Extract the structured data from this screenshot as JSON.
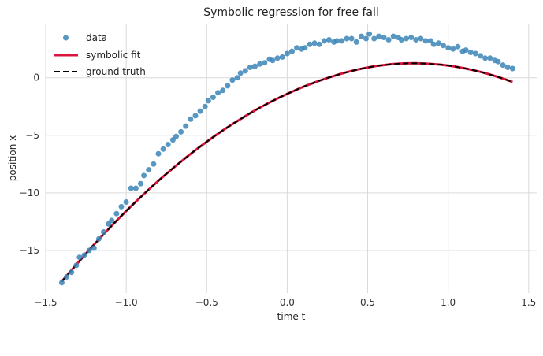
{
  "chart_data": {
    "type": "scatter",
    "title": "Symbolic regression for free fall",
    "xlabel": "time t",
    "ylabel": "position x",
    "xlim": [
      -1.5,
      1.55
    ],
    "ylim": [
      -18.7,
      4.7
    ],
    "xticks": [
      -1.5,
      -1.0,
      -0.5,
      0.0,
      0.5,
      1.0,
      1.5
    ],
    "xtick_labels": [
      "−1.5",
      "−1.0",
      "−0.5",
      "0.0",
      "0.5",
      "1.0",
      "1.5"
    ],
    "yticks": [
      -15,
      -10,
      -5,
      0
    ],
    "ytick_labels": [
      "−15",
      "−10",
      "−5",
      "0"
    ],
    "grid": true,
    "legend_position": "top-left",
    "colors": {
      "data": "#3b85b7",
      "symbolic_fit": "#dc143c",
      "ground_truth": "#000000",
      "grid": "#d9d9d9"
    },
    "series": [
      {
        "name": "data",
        "kind": "scatter",
        "x": [
          -1.4,
          -1.37,
          -1.34,
          -1.31,
          -1.29,
          -1.26,
          -1.23,
          -1.2,
          -1.17,
          -1.14,
          -1.11,
          -1.09,
          -1.06,
          -1.03,
          -1.0,
          -0.97,
          -0.94,
          -0.91,
          -0.89,
          -0.86,
          -0.83,
          -0.8,
          -0.77,
          -0.74,
          -0.71,
          -0.69,
          -0.66,
          -0.63,
          -0.6,
          -0.57,
          -0.54,
          -0.51,
          -0.49,
          -0.46,
          -0.43,
          -0.4,
          -0.37,
          -0.34,
          -0.31,
          -0.29,
          -0.26,
          -0.23,
          -0.2,
          -0.17,
          -0.14,
          -0.11,
          -0.09,
          -0.06,
          -0.03,
          0.0,
          0.03,
          0.06,
          0.09,
          0.11,
          0.14,
          0.17,
          0.2,
          0.23,
          0.26,
          0.29,
          0.31,
          0.34,
          0.37,
          0.4,
          0.43,
          0.46,
          0.49,
          0.51,
          0.54,
          0.57,
          0.6,
          0.63,
          0.66,
          0.69,
          0.71,
          0.74,
          0.77,
          0.8,
          0.83,
          0.86,
          0.89,
          0.91,
          0.94,
          0.97,
          1.0,
          1.03,
          1.06,
          1.09,
          1.11,
          1.14,
          1.17,
          1.2,
          1.23,
          1.26,
          1.29,
          1.31,
          1.34,
          1.37,
          1.4
        ],
        "y": [
          -17.8,
          -17.3,
          -16.9,
          -16.3,
          -15.6,
          -15.4,
          -15.0,
          -14.8,
          -14.0,
          -13.4,
          -12.7,
          -12.4,
          -11.8,
          -11.2,
          -10.8,
          -9.6,
          -9.6,
          -9.2,
          -8.5,
          -8.0,
          -7.5,
          -6.6,
          -6.2,
          -5.8,
          -5.4,
          -5.1,
          -4.7,
          -4.2,
          -3.6,
          -3.3,
          -2.9,
          -2.5,
          -2.0,
          -1.7,
          -1.3,
          -1.1,
          -0.7,
          -0.2,
          0.0,
          0.4,
          0.6,
          0.9,
          1.0,
          1.2,
          1.3,
          1.6,
          1.5,
          1.7,
          1.8,
          2.1,
          2.3,
          2.6,
          2.5,
          2.6,
          2.9,
          3.0,
          2.9,
          3.2,
          3.3,
          3.1,
          3.2,
          3.2,
          3.4,
          3.4,
          3.1,
          3.6,
          3.4,
          3.8,
          3.4,
          3.6,
          3.5,
          3.3,
          3.6,
          3.5,
          3.3,
          3.4,
          3.5,
          3.3,
          3.4,
          3.2,
          3.2,
          2.9,
          3.0,
          2.8,
          2.6,
          2.5,
          2.7,
          2.3,
          2.4,
          2.2,
          2.1,
          1.9,
          1.7,
          1.7,
          1.5,
          1.4,
          1.1,
          0.9,
          0.8
        ]
      },
      {
        "name": "symbolic fit",
        "kind": "line",
        "x": [
          -1.4,
          -1.35,
          -1.3,
          -1.25,
          -1.2,
          -1.15,
          -1.1,
          -1.05,
          -1.0,
          -0.95,
          -0.9,
          -0.85,
          -0.8,
          -0.75,
          -0.7,
          -0.65,
          -0.6,
          -0.55,
          -0.5,
          -0.45,
          -0.4,
          -0.35,
          -0.3,
          -0.25,
          -0.2,
          -0.15,
          -0.1,
          -0.05,
          0.0,
          0.05,
          0.1,
          0.15,
          0.2,
          0.25,
          0.3,
          0.35,
          0.4,
          0.45,
          0.5,
          0.55,
          0.6,
          0.65,
          0.7,
          0.75,
          0.8,
          0.85,
          0.9,
          0.95,
          1.0,
          1.05,
          1.1,
          1.15,
          1.2,
          1.25,
          1.3,
          1.35,
          1.4
        ],
        "y": [
          -17.7,
          -16.88,
          -16.07,
          -15.27,
          -14.5,
          -13.74,
          -13.0,
          -12.28,
          -11.58,
          -10.9,
          -10.23,
          -9.58,
          -8.95,
          -8.34,
          -7.75,
          -7.18,
          -6.62,
          -6.08,
          -5.56,
          -5.06,
          -4.58,
          -4.12,
          -3.68,
          -3.25,
          -2.84,
          -2.45,
          -2.08,
          -1.73,
          -1.4,
          -1.09,
          -0.79,
          -0.52,
          -0.26,
          -0.02,
          0.2,
          0.41,
          0.59,
          0.75,
          0.89,
          1.01,
          1.1,
          1.18,
          1.23,
          1.25,
          1.26,
          1.24,
          1.2,
          1.14,
          1.06,
          0.95,
          0.83,
          0.68,
          0.51,
          0.32,
          0.11,
          -0.12,
          -0.37
        ]
      },
      {
        "name": "ground truth",
        "kind": "dashed-line",
        "x": [
          -1.4,
          -1.35,
          -1.3,
          -1.25,
          -1.2,
          -1.15,
          -1.1,
          -1.05,
          -1.0,
          -0.95,
          -0.9,
          -0.85,
          -0.8,
          -0.75,
          -0.7,
          -0.65,
          -0.6,
          -0.55,
          -0.5,
          -0.45,
          -0.4,
          -0.35,
          -0.3,
          -0.25,
          -0.2,
          -0.15,
          -0.1,
          -0.05,
          0.0,
          0.05,
          0.1,
          0.15,
          0.2,
          0.25,
          0.3,
          0.35,
          0.4,
          0.45,
          0.5,
          0.55,
          0.6,
          0.65,
          0.7,
          0.75,
          0.8,
          0.85,
          0.9,
          0.95,
          1.0,
          1.05,
          1.1,
          1.15,
          1.2,
          1.25,
          1.3,
          1.35,
          1.4
        ],
        "y": [
          -17.7,
          -16.88,
          -16.07,
          -15.27,
          -14.5,
          -13.74,
          -13.0,
          -12.28,
          -11.58,
          -10.9,
          -10.23,
          -9.58,
          -8.95,
          -8.34,
          -7.75,
          -7.18,
          -6.62,
          -6.08,
          -5.56,
          -5.06,
          -4.58,
          -4.12,
          -3.68,
          -3.25,
          -2.84,
          -2.45,
          -2.08,
          -1.73,
          -1.4,
          -1.09,
          -0.79,
          -0.52,
          -0.26,
          -0.02,
          0.2,
          0.41,
          0.59,
          0.75,
          0.89,
          1.01,
          1.1,
          1.18,
          1.23,
          1.25,
          1.26,
          1.24,
          1.2,
          1.14,
          1.06,
          0.95,
          0.83,
          0.68,
          0.51,
          0.32,
          0.11,
          -0.12,
          -0.37
        ]
      }
    ]
  }
}
